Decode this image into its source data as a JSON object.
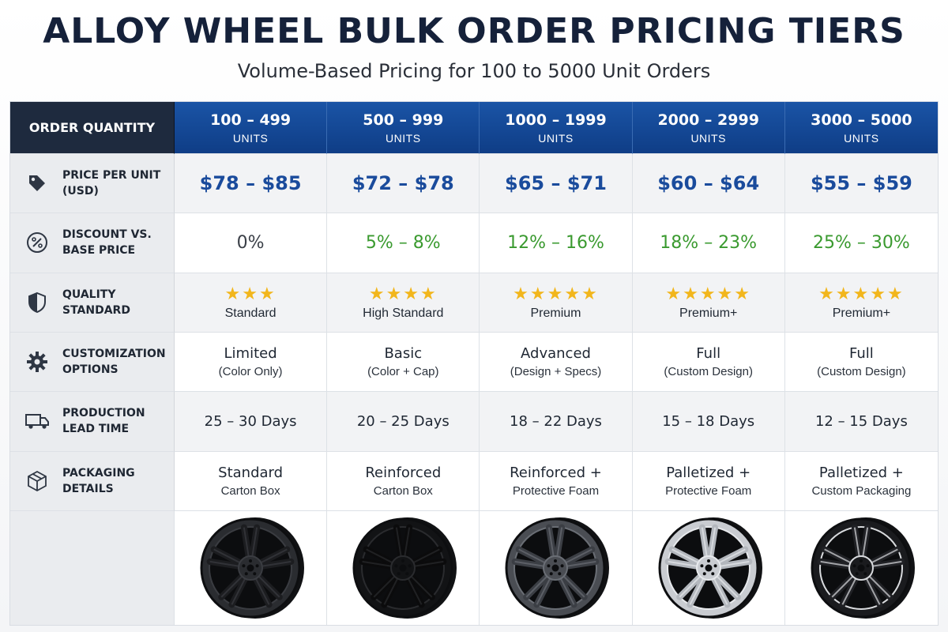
{
  "title": "ALLOY WHEEL BULK ORDER PRICING TIERS",
  "subtitle": "Volume-Based Pricing for 100 to 5000 Unit Orders",
  "header_label": "ORDER QUANTITY",
  "tiers": [
    {
      "range": "100 – 499",
      "unit": "UNITS"
    },
    {
      "range": "500 – 999",
      "unit": "UNITS"
    },
    {
      "range": "1000 – 1999",
      "unit": "UNITS"
    },
    {
      "range": "2000 – 2999",
      "unit": "UNITS"
    },
    {
      "range": "3000 – 5000",
      "unit": "UNITS"
    }
  ],
  "rows": {
    "price": {
      "label_1": "PRICE PER UNIT",
      "label_2": "(USD)",
      "icon": "price-tag-icon",
      "values": [
        "$78 – $85",
        "$72 – $78",
        "$65 – $71",
        "$60 – $64",
        "$55 – $59"
      ]
    },
    "discount": {
      "label_1": "DISCOUNT VS.",
      "label_2": "BASE PRICE",
      "icon": "percent-icon",
      "values": [
        "0%",
        "5% – 8%",
        "12% – 16%",
        "18% – 23%",
        "25% – 30%"
      ],
      "colors": [
        "#3a3f47",
        "#3a9a2f",
        "#3a9a2f",
        "#3a9a2f",
        "#3a9a2f"
      ]
    },
    "quality": {
      "label_1": "QUALITY",
      "label_2": "STANDARD",
      "icon": "shield-icon",
      "stars": [
        3,
        4,
        5,
        5,
        5
      ],
      "values": [
        "Standard",
        "High Standard",
        "Premium",
        "Premium+",
        "Premium+"
      ]
    },
    "customization": {
      "label_1": "CUSTOMIZATION",
      "label_2": "OPTIONS",
      "icon": "gear-icon",
      "main": [
        "Limited",
        "Basic",
        "Advanced",
        "Full",
        "Full"
      ],
      "sub": [
        "(Color Only)",
        "(Color + Cap)",
        "(Design + Specs)",
        "(Custom Design)",
        "(Custom Design)"
      ]
    },
    "lead": {
      "label_1": "PRODUCTION",
      "label_2": "LEAD TIME",
      "icon": "truck-icon",
      "values": [
        "25 – 30 Days",
        "20 – 25 Days",
        "18 – 22 Days",
        "15 – 18 Days",
        "12 – 15 Days"
      ]
    },
    "packaging": {
      "label_1": "PACKAGING",
      "label_2": "DETAILS",
      "icon": "box-icon",
      "main": [
        "Standard",
        "Reinforced",
        "Reinforced +",
        "Palletized +",
        "Palletized +"
      ],
      "sub": [
        "Carton Box",
        "Carton Box",
        "Protective Foam",
        "Protective Foam",
        "Custom Packaging"
      ]
    }
  },
  "wheels": [
    {
      "style": "matte-black",
      "rim": "#2a2c30",
      "spoke": "#1c1d20",
      "accent": "#3a3c41"
    },
    {
      "style": "gloss-black",
      "rim": "#121315",
      "spoke": "#0b0b0c",
      "accent": "#2a2b2e"
    },
    {
      "style": "gunmetal",
      "rim": "#4a4d53",
      "spoke": "#3b3e44",
      "accent": "#6a6e75"
    },
    {
      "style": "silver",
      "rim": "#c9ccd1",
      "spoke": "#b3b7bd",
      "accent": "#e7e9ec"
    },
    {
      "style": "black-machined",
      "rim": "#1a1b1e",
      "spoke": "#202125",
      "accent": "#d9dbde"
    }
  ],
  "colors": {
    "header_dark": "#1e2a3e",
    "header_blue": "#1a54a6",
    "price_blue": "#1a4b9c",
    "discount_green": "#3a9a2f",
    "star": "#f2b61c"
  }
}
